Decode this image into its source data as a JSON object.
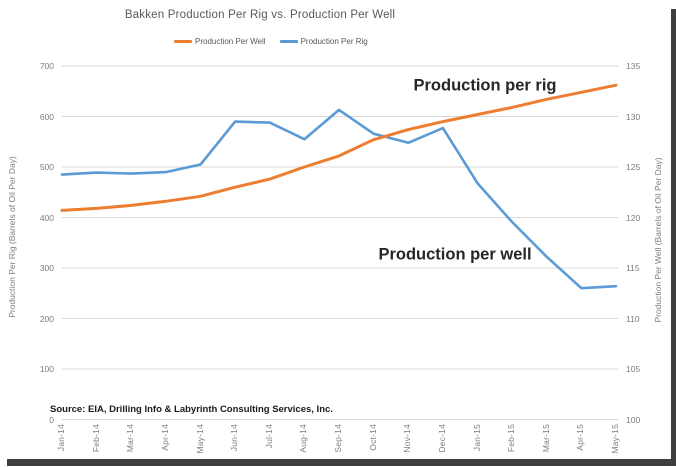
{
  "chart_data": {
    "type": "line",
    "title": "Bakken Production Per Rig vs. Production Per Well",
    "legend_position": "top",
    "grid": "horizontal",
    "categories": [
      "Jan-14",
      "Feb-14",
      "Mar-14",
      "Apr-14",
      "May-14",
      "Jun-14",
      "Jul-14",
      "Aug-14",
      "Sep-14",
      "Oct-14",
      "Nov-14",
      "Dec-14",
      "Jan-15",
      "Feb-15",
      "Mar-15",
      "Apr-15",
      "May-15"
    ],
    "series": [
      {
        "name": "Production Per Well",
        "axis": "right",
        "color": "#ED7D31",
        "values": [
          120.7,
          120.9,
          121.2,
          121.6,
          122.1,
          123.0,
          123.8,
          125.0,
          126.1,
          127.7,
          128.7,
          129.5,
          130.2,
          130.9,
          131.7,
          132.4,
          133.1
        ]
      },
      {
        "name": "Production Per Rig",
        "axis": "left",
        "color": "#5B9BD5",
        "values": [
          485,
          489,
          487,
          490,
          505,
          590,
          588,
          555,
          613,
          566,
          548,
          577,
          468,
          391,
          322,
          260,
          264
        ]
      }
    ],
    "left_axis": {
      "label": "Production Per Rig (Barrels of Oil Per Day)",
      "min": 0,
      "max": 700,
      "step": 100,
      "ticks": [
        "700",
        "600",
        "500",
        "400",
        "300",
        "200",
        "100",
        "0"
      ]
    },
    "right_axis": {
      "label": "Production Per Well (Barrels of Oil Per Day)",
      "min": 100,
      "max": 135,
      "step": 5,
      "ticks": [
        "135",
        "130",
        "125",
        "120",
        "115",
        "110",
        "105",
        "100"
      ]
    },
    "annotations": [
      {
        "text": "Production per rig",
        "x": 485,
        "y": 86
      },
      {
        "text": "Production per well",
        "x": 455,
        "y": 255
      }
    ],
    "source_note": "Source: EIA, Drilling Info & Labyrinth Consulting Services, Inc.",
    "colors": {
      "gridline": "#d9d9d9",
      "tick_text": "#7d7d7d",
      "title_text": "#595959"
    }
  }
}
